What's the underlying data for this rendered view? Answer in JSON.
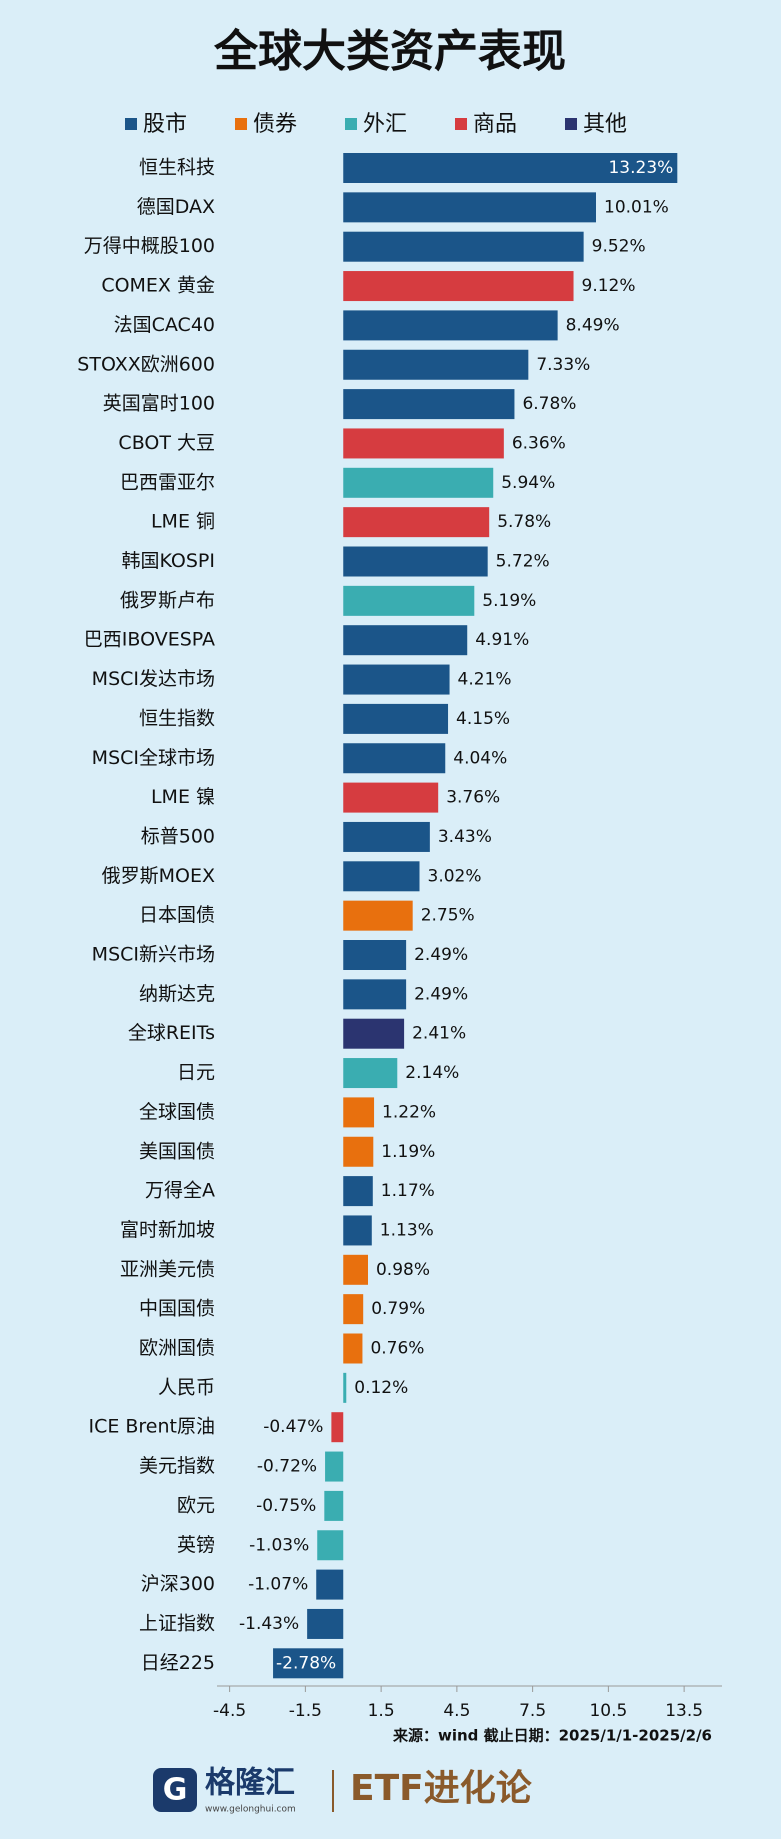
{
  "chart_data": {
    "type": "bar",
    "orientation": "horizontal",
    "title": "全球大类资产表现",
    "source": "来源：wind  截止日期：2025/1/1-2025/2/6",
    "categories": [
      "恒生科技",
      "德国DAX",
      "万得中概股100",
      "COMEX 黄金",
      "法国CAC40",
      "STOXX欧洲600",
      "英国富时100",
      "CBOT 大豆",
      "巴西雷亚尔",
      "LME 铜",
      "韩国KOSPI",
      "俄罗斯卢布",
      "巴西IBOVESPA",
      "MSCI发达市场",
      "恒生指数",
      "MSCI全球市场",
      "LME 镍",
      "标普500",
      "俄罗斯MOEX",
      "日本国债",
      "MSCI新兴市场",
      "纳斯达克",
      "全球REITs",
      "日元",
      "全球国债",
      "美国国债",
      "万得全A",
      "富时新加坡",
      "亚洲美元债",
      "中国国债",
      "欧洲国债",
      "人民币",
      "ICE Brent原油",
      "美元指数",
      "欧元",
      "英镑",
      "沪深300",
      "上证指数",
      "日经225"
    ],
    "series": [
      {
        "name": "股市",
        "color": "#1b5589",
        "values": [
          13.23,
          10.01,
          9.52,
          null,
          8.49,
          7.33,
          6.78,
          null,
          null,
          null,
          5.72,
          null,
          4.91,
          4.21,
          4.15,
          4.04,
          null,
          3.43,
          3.02,
          null,
          2.49,
          2.49,
          null,
          null,
          null,
          null,
          1.17,
          1.13,
          null,
          null,
          null,
          null,
          null,
          null,
          null,
          null,
          -1.07,
          -1.43,
          -2.78
        ],
        "value_labels": [
          "13.23%",
          "10.01%",
          "9.52%",
          null,
          "8.49%",
          "7.33%",
          "6.78%",
          null,
          null,
          null,
          "5.72%",
          null,
          "4.91%",
          "4.21%",
          "4.15%",
          "4.04%",
          null,
          "3.43%",
          "3.02%",
          null,
          "2.49%",
          "2.49%",
          null,
          null,
          null,
          null,
          "1.17%",
          "1.13%",
          null,
          null,
          null,
          null,
          null,
          null,
          null,
          null,
          "-1.07%",
          "-1.43%",
          "-2.78%"
        ]
      },
      {
        "name": "债券",
        "color": "#e8700e",
        "values": [
          null,
          null,
          null,
          null,
          null,
          null,
          null,
          null,
          null,
          null,
          null,
          null,
          null,
          null,
          null,
          null,
          null,
          null,
          null,
          2.75,
          null,
          null,
          null,
          null,
          1.22,
          1.19,
          null,
          null,
          0.98,
          0.79,
          0.76,
          null,
          null,
          null,
          null,
          null,
          null,
          null,
          null
        ],
        "value_labels": [
          null,
          null,
          null,
          null,
          null,
          null,
          null,
          null,
          null,
          null,
          null,
          null,
          null,
          null,
          null,
          null,
          null,
          null,
          null,
          "2.75%",
          null,
          null,
          null,
          null,
          "1.22%",
          "1.19%",
          null,
          null,
          "0.98%",
          "0.79%",
          "0.76%",
          null,
          null,
          null,
          null,
          null,
          null,
          null,
          null
        ]
      },
      {
        "name": "外汇",
        "color": "#3aadb1",
        "values": [
          null,
          null,
          null,
          null,
          null,
          null,
          null,
          null,
          5.94,
          null,
          null,
          5.19,
          null,
          null,
          null,
          null,
          null,
          null,
          null,
          null,
          null,
          null,
          null,
          2.14,
          null,
          null,
          null,
          null,
          null,
          null,
          null,
          0.12,
          null,
          -0.72,
          -0.75,
          -1.03,
          null,
          null,
          null
        ],
        "value_labels": [
          null,
          null,
          null,
          null,
          null,
          null,
          null,
          null,
          "5.94%",
          null,
          null,
          "5.19%",
          null,
          null,
          null,
          null,
          null,
          null,
          null,
          null,
          null,
          null,
          null,
          "2.14%",
          null,
          null,
          null,
          null,
          null,
          null,
          null,
          "0.12%",
          null,
          "-0.72%",
          "-0.75%",
          "-1.03%",
          null,
          null,
          null
        ]
      },
      {
        "name": "商品",
        "color": "#d63c40",
        "values": [
          null,
          null,
          null,
          9.12,
          null,
          null,
          null,
          6.36,
          null,
          5.78,
          null,
          null,
          null,
          null,
          null,
          null,
          3.76,
          null,
          null,
          null,
          null,
          null,
          null,
          null,
          null,
          null,
          null,
          null,
          null,
          null,
          null,
          null,
          -0.47,
          null,
          null,
          null,
          null,
          null,
          null
        ],
        "value_labels": [
          null,
          null,
          null,
          "9.12%",
          null,
          null,
          null,
          "6.36%",
          null,
          "5.78%",
          null,
          null,
          null,
          null,
          null,
          null,
          "3.76%",
          null,
          null,
          null,
          null,
          null,
          null,
          null,
          null,
          null,
          null,
          null,
          null,
          null,
          null,
          null,
          "-0.47%",
          null,
          null,
          null,
          null,
          null,
          null
        ]
      },
      {
        "name": "其他",
        "color": "#2b3470",
        "values": [
          null,
          null,
          null,
          null,
          null,
          null,
          null,
          null,
          null,
          null,
          null,
          null,
          null,
          null,
          null,
          null,
          null,
          null,
          null,
          null,
          null,
          null,
          2.41,
          null,
          null,
          null,
          null,
          null,
          null,
          null,
          null,
          null,
          null,
          null,
          null,
          null,
          null,
          null,
          null
        ],
        "value_labels": [
          null,
          null,
          null,
          null,
          null,
          null,
          null,
          null,
          null,
          null,
          null,
          null,
          null,
          null,
          null,
          null,
          null,
          null,
          null,
          null,
          null,
          null,
          "2.41%",
          null,
          null,
          null,
          null,
          null,
          null,
          null,
          null,
          null,
          null,
          null,
          null,
          null,
          null,
          null,
          null
        ]
      }
    ],
    "xlim": [
      -5,
      15
    ],
    "xticks": [
      -4.5,
      -1.5,
      1.5,
      4.5,
      7.5,
      10.5,
      13.5
    ]
  },
  "branding": {
    "logo": "格隆汇",
    "site": "www.gelonghui.com",
    "column": "ETF进化论"
  }
}
